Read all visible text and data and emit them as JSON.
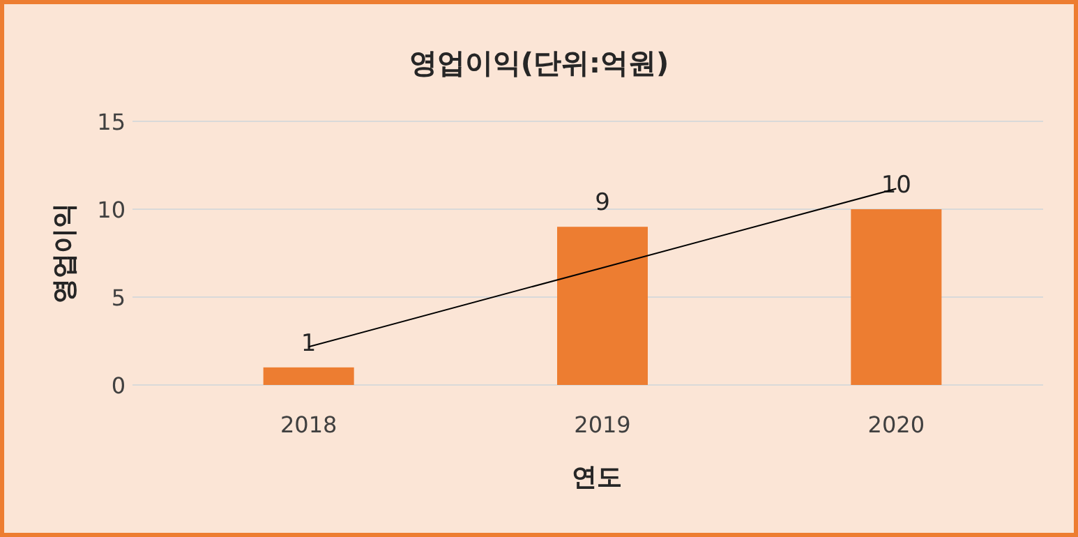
{
  "chart_data": {
    "type": "bar",
    "title": "영업이익(단위:억원)",
    "xlabel": "연도",
    "ylabel": "영업이익",
    "categories": [
      "2018",
      "2019",
      "2020"
    ],
    "series": [
      {
        "color": "#ed7d31",
        "values": [
          1,
          9,
          10
        ],
        "value_labels": [
          "1",
          "9",
          "10"
        ]
      },
      {
        "type": "line",
        "color": "#000000",
        "values": [
          2.17,
          6.67,
          11.17
        ]
      }
    ],
    "ylim": [
      0,
      15
    ],
    "yticks": [
      0,
      5,
      10,
      15
    ],
    "grid": "y"
  }
}
